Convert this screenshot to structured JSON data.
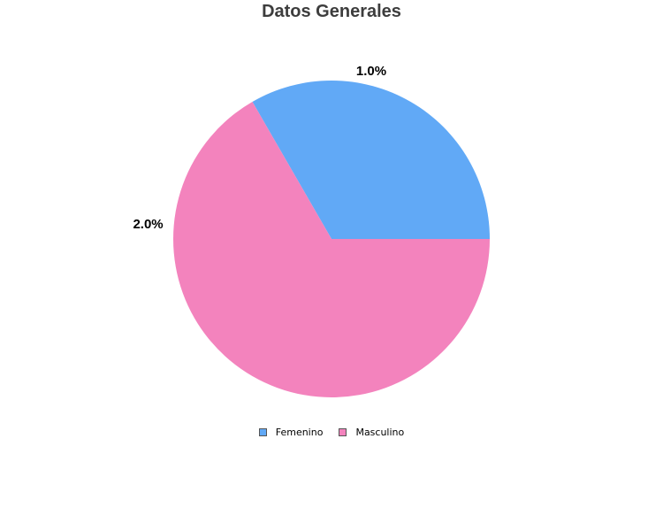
{
  "chart_data": {
    "type": "pie",
    "title": "Datos Generales",
    "legend_position": "bottom",
    "slices": [
      {
        "name": "Femenino",
        "value": 1,
        "label": "1.0%",
        "color": "#61a9f6"
      },
      {
        "name": "Masculino",
        "value": 2,
        "label": "2.0%",
        "color": "#f383bd"
      }
    ]
  }
}
